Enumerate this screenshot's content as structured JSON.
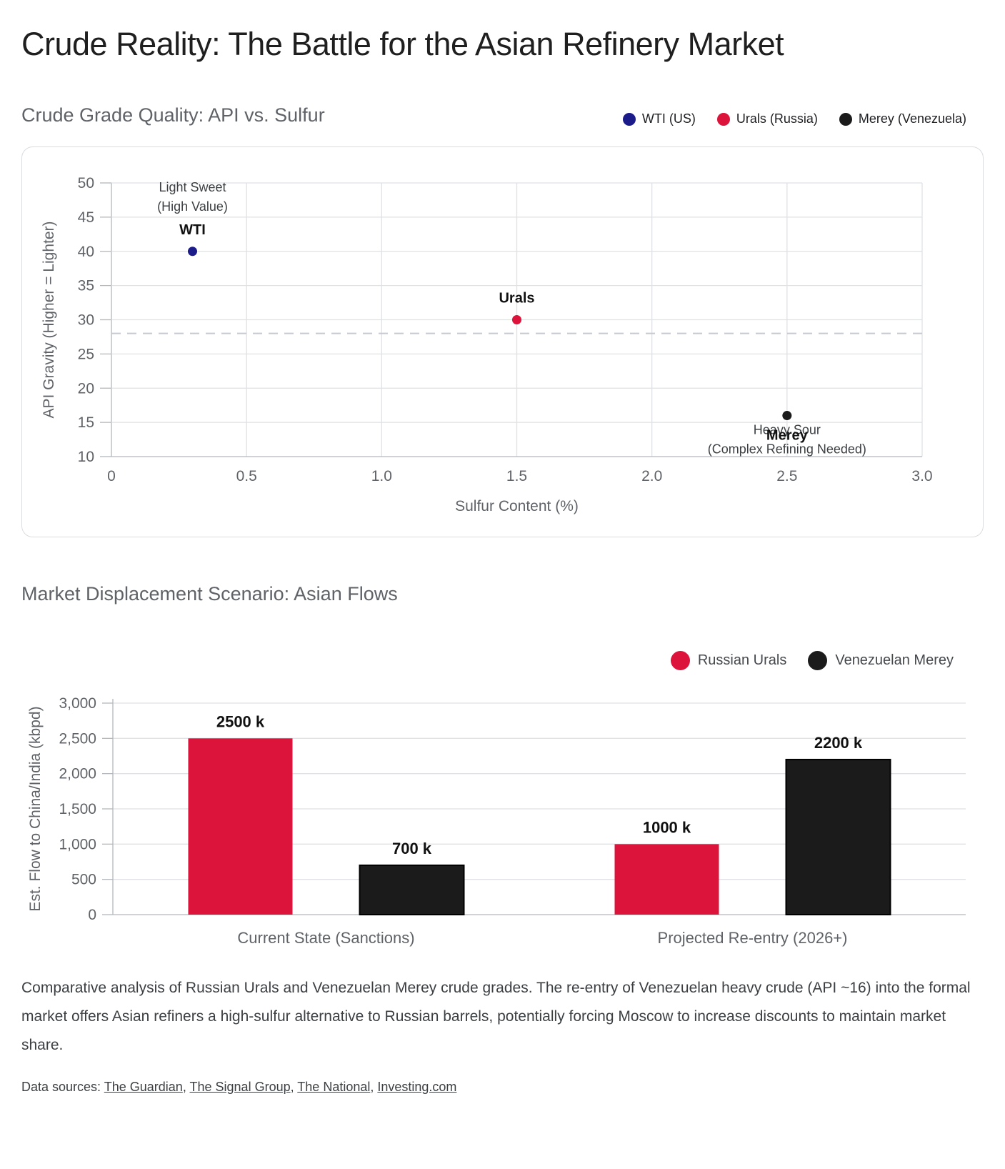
{
  "page": {
    "title": "Crude Reality: The Battle for the Asian Refinery Market",
    "summary": "Comparative analysis of Russian Urals and Venezuelan Merey crude grades. The re-entry of Venezuelan heavy crude (API ~16) into the formal market offers Asian refiners a high-sulfur alternative to Russian barrels, potentially forcing Moscow to increase discounts to maintain market share.",
    "sources_label": "Data sources:",
    "sources": [
      "The Guardian",
      "The Signal Group",
      "The National",
      "Investing.com"
    ]
  },
  "colors": {
    "navy": "#1b1b8a",
    "crimson": "#dc143c",
    "black": "#1b1b1b",
    "grid": "#dfe1e5",
    "axis": "#b4b8bd",
    "dashed_line": "#c6cad0",
    "tick": "#5f6368",
    "annotation": "#3c4043",
    "label_dark": "#111111"
  },
  "chart_data": [
    {
      "type": "scatter",
      "title": "Crude Grade Quality: API vs. Sulfur",
      "xlabel": "Sulfur Content (%)",
      "ylabel": "API Gravity (Higher = Lighter)",
      "xlim": [
        0,
        3
      ],
      "ylim": [
        10,
        50
      ],
      "grid": true,
      "legend_position": "top-right",
      "xticks": [
        {
          "v": 0,
          "label": "0"
        },
        {
          "v": 0.5,
          "label": "0.5"
        },
        {
          "v": 1,
          "label": "1.0"
        },
        {
          "v": 1.5,
          "label": "1.5"
        },
        {
          "v": 2,
          "label": "2.0"
        },
        {
          "v": 2.5,
          "label": "2.5"
        },
        {
          "v": 3,
          "label": "3.0"
        }
      ],
      "yticks": [
        {
          "v": 10,
          "label": "10"
        },
        {
          "v": 15,
          "label": "15"
        },
        {
          "v": 20,
          "label": "20"
        },
        {
          "v": 25,
          "label": "25"
        },
        {
          "v": 30,
          "label": "30"
        },
        {
          "v": 35,
          "label": "35"
        },
        {
          "v": 40,
          "label": "40"
        },
        {
          "v": 45,
          "label": "45"
        },
        {
          "v": 50,
          "label": "50"
        }
      ],
      "reference_line": {
        "y": 28,
        "style": "dashed"
      },
      "series": [
        {
          "name": "WTI (US)",
          "color": "#1b1b8a",
          "points": [
            {
              "x": 0.3,
              "y": 40,
              "label": "WTI",
              "label_position": "above"
            }
          ]
        },
        {
          "name": "Urals (Russia)",
          "color": "#dc143c",
          "points": [
            {
              "x": 1.5,
              "y": 30,
              "label": "Urals",
              "label_position": "above"
            }
          ]
        },
        {
          "name": "Merey (Venezuela)",
          "color": "#1b1b1b",
          "points": [
            {
              "x": 2.5,
              "y": 16,
              "label": "Merey",
              "label_position": "below"
            }
          ]
        }
      ],
      "annotations": [
        {
          "x": 0.3,
          "y": 49.6,
          "lines": [
            "Light Sweet",
            "(High Value)"
          ]
        },
        {
          "x": 2.5,
          "y": 14.1,
          "lines": [
            "Heavy Sour",
            "(Complex Refining Needed)"
          ]
        }
      ]
    },
    {
      "type": "bar",
      "title": "Market Displacement Scenario: Asian Flows",
      "ylabel": "Est. Flow to China/India (kbpd)",
      "ylim": [
        0,
        3000
      ],
      "grid": true,
      "legend_position": "top-right",
      "yticks": [
        {
          "v": 0,
          "label": "0"
        },
        {
          "v": 500,
          "label": "500"
        },
        {
          "v": 1000,
          "label": "1,000"
        },
        {
          "v": 1500,
          "label": "1,500"
        },
        {
          "v": 2000,
          "label": "2,000"
        },
        {
          "v": 2500,
          "label": "2,500"
        },
        {
          "v": 3000,
          "label": "3,000"
        }
      ],
      "categories": [
        "Current State (Sanctions)",
        "Projected Re-entry (2026+)"
      ],
      "series": [
        {
          "name": "Russian Urals",
          "color": "#dc143c",
          "values": [
            2500,
            1000
          ],
          "value_labels": [
            "2500 k",
            "1000 k"
          ]
        },
        {
          "name": "Venezuelan Merey",
          "color": "#1b1b1b",
          "values": [
            700,
            2200
          ],
          "value_labels": [
            "700 k",
            "2200 k"
          ]
        }
      ]
    }
  ]
}
